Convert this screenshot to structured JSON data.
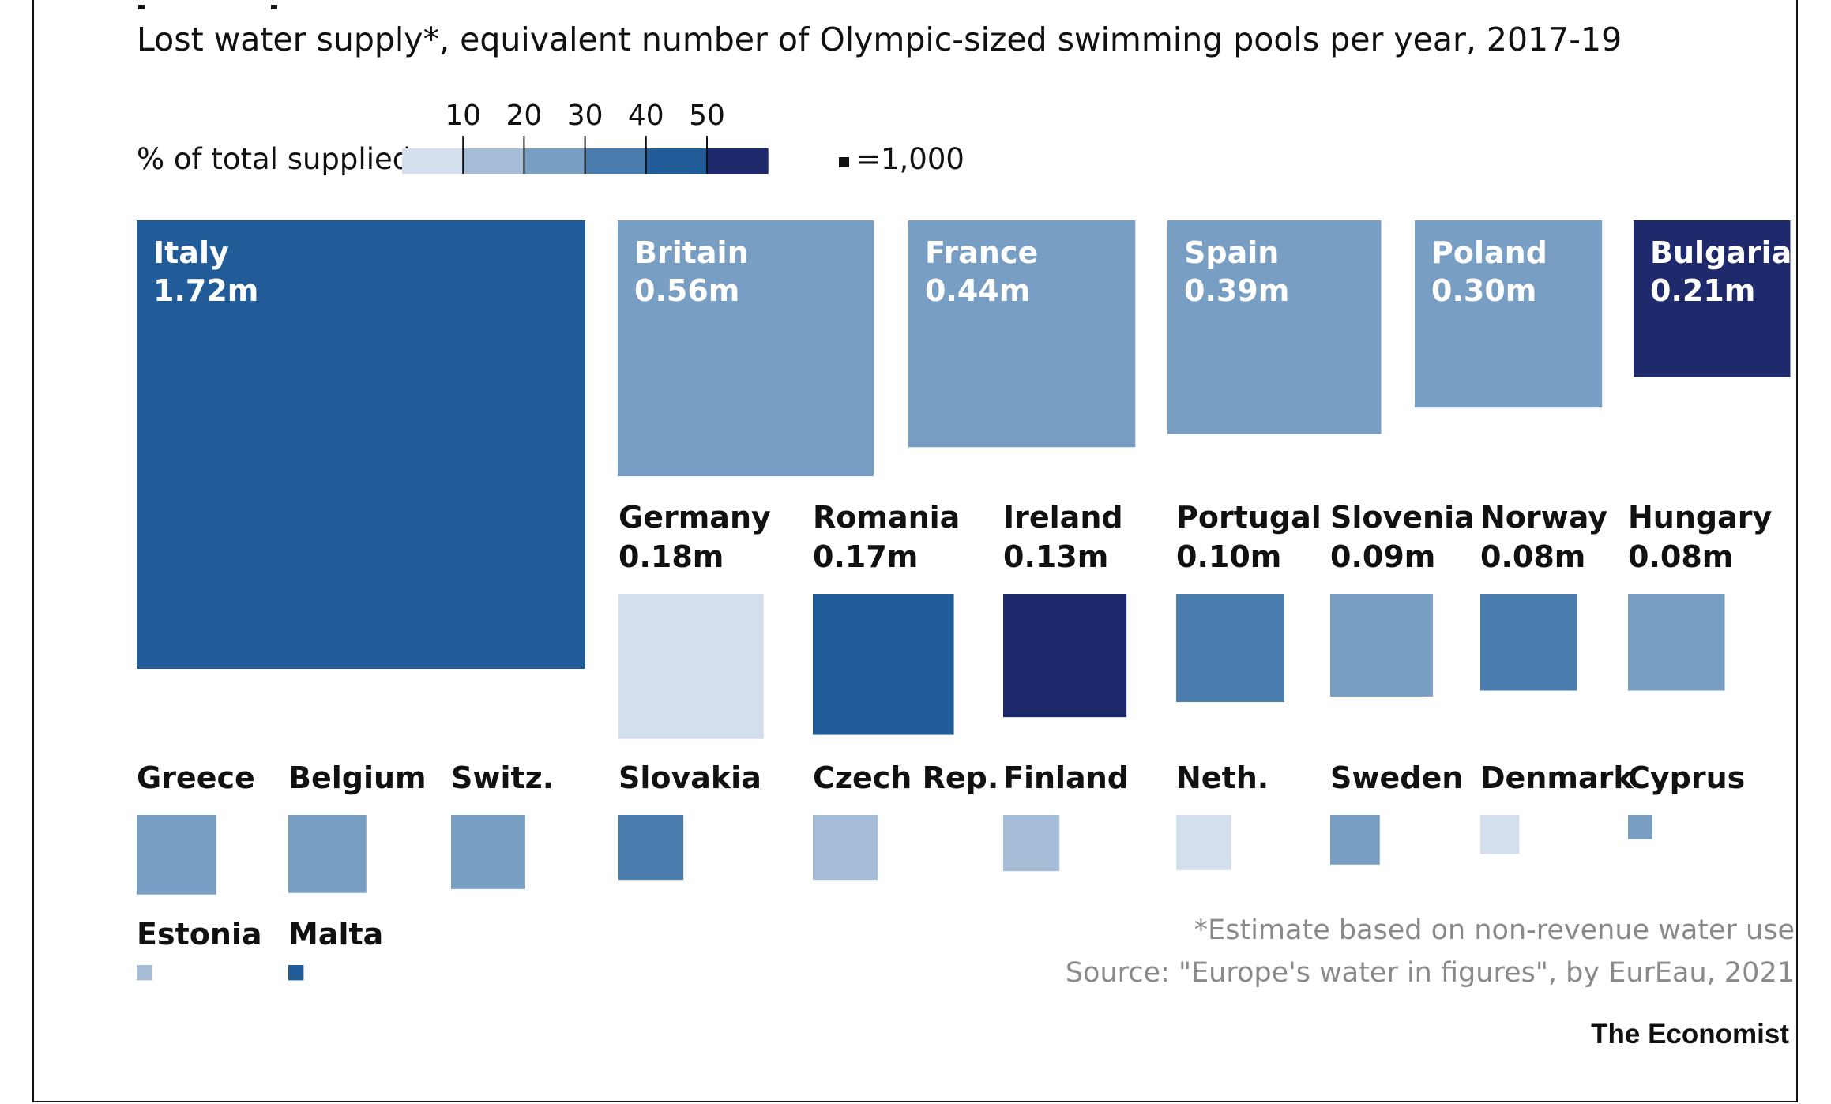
{
  "chart_data": {
    "type": "proportional-squares",
    "title": "Lost water supply*, equivalent number of Olympic-sized swimming pools per year, 2017-19",
    "legend": {
      "label": "% of total supplied",
      "ticks": [
        "10",
        "20",
        "30",
        "40",
        "50"
      ],
      "bin_colors": [
        "#d4dfed",
        "#a6bdd8",
        "#789ec4",
        "#4a7dae",
        "#215c99",
        "#1f2a6d"
      ],
      "unit_label": "=1,000",
      "unit_value": 1000
    },
    "countries": [
      {
        "name": "Italy",
        "value_label": "1.72m",
        "value": 1720000,
        "color": "#215c99"
      },
      {
        "name": "Britain",
        "value_label": "0.56m",
        "value": 560000,
        "color": "#789ec4"
      },
      {
        "name": "France",
        "value_label": "0.44m",
        "value": 440000,
        "color": "#789ec4"
      },
      {
        "name": "Spain",
        "value_label": "0.39m",
        "value": 390000,
        "color": "#789ec4"
      },
      {
        "name": "Poland",
        "value_label": "0.30m",
        "value": 300000,
        "color": "#789ec4"
      },
      {
        "name": "Bulgaria",
        "value_label": "0.21m",
        "value": 210000,
        "color": "#1f2a6d"
      },
      {
        "name": "Germany",
        "value_label": "0.18m",
        "value": 180000,
        "color": "#d4dfed"
      },
      {
        "name": "Romania",
        "value_label": "0.17m",
        "value": 170000,
        "color": "#215c99"
      },
      {
        "name": "Ireland",
        "value_label": "0.13m",
        "value": 130000,
        "color": "#1f2a6d"
      },
      {
        "name": "Portugal",
        "value_label": "0.10m",
        "value": 100000,
        "color": "#4a7dae"
      },
      {
        "name": "Slovenia",
        "value_label": "0.09m",
        "value": 90000,
        "color": "#789ec4"
      },
      {
        "name": "Norway",
        "value_label": "0.08m",
        "value": 80000,
        "color": "#4a7dae"
      },
      {
        "name": "Hungary",
        "value_label": "0.08m",
        "value": 80000,
        "color": "#789ec4"
      },
      {
        "name": "Greece",
        "value_label": "",
        "value": 54000,
        "color": "#789ec4"
      },
      {
        "name": "Belgium",
        "value_label": "",
        "value": 52000,
        "color": "#789ec4"
      },
      {
        "name": "Switz.",
        "value_label": "",
        "value": 47000,
        "color": "#789ec4"
      },
      {
        "name": "Slovakia",
        "value_label": "",
        "value": 36000,
        "color": "#4a7dae"
      },
      {
        "name": "Czech Rep.",
        "value_label": "",
        "value": 36000,
        "color": "#a6bdd8"
      },
      {
        "name": "Finland",
        "value_label": "",
        "value": 27000,
        "color": "#a6bdd8"
      },
      {
        "name": "Neth.",
        "value_label": "",
        "value": 26000,
        "color": "#d4dfed"
      },
      {
        "name": "Sweden",
        "value_label": "",
        "value": 21000,
        "color": "#789ec4"
      },
      {
        "name": "Denmark",
        "value_label": "",
        "value": 13000,
        "color": "#d4dfed"
      },
      {
        "name": "Cyprus",
        "value_label": "",
        "value": 5000,
        "color": "#789ec4"
      },
      {
        "name": "Estonia",
        "value_label": "",
        "value": 2000,
        "color": "#a6bdd8"
      },
      {
        "name": "Malta",
        "value_label": "",
        "value": 2000,
        "color": "#215c99"
      }
    ],
    "footnote": "*Estimate based on non-revenue water use",
    "source": "Source: \"Europe's water in figures\", by EurEau, 2021",
    "brand": "The Economist"
  }
}
